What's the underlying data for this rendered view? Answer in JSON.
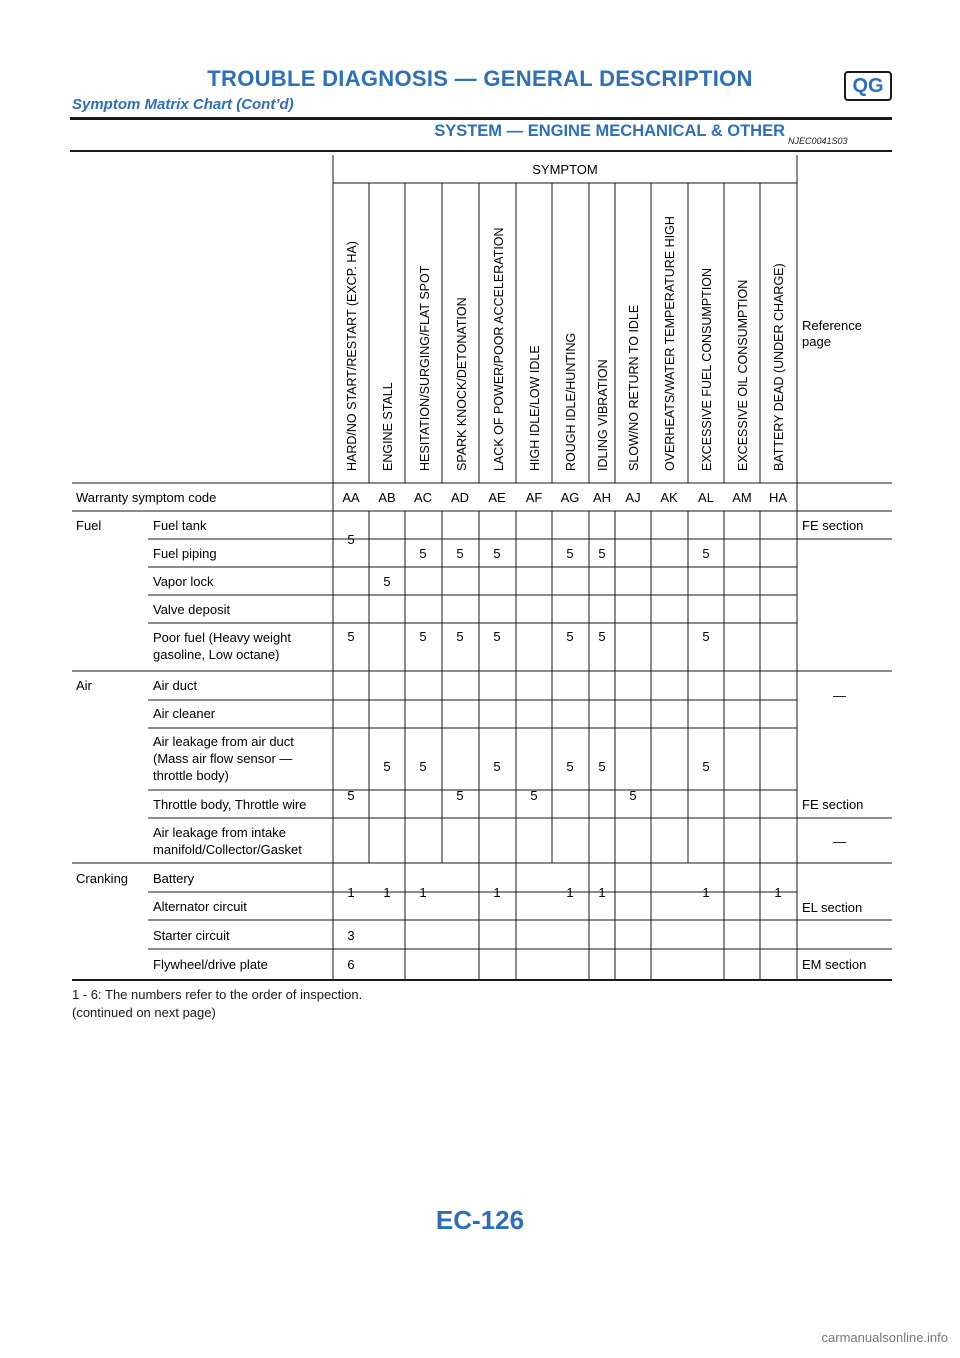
{
  "header": {
    "title": "TROUBLE DIAGNOSIS — GENERAL DESCRIPTION",
    "badge": "QG",
    "subtitle": "Symptom Matrix Chart (Cont’d)"
  },
  "section": {
    "title": "SYSTEM — ENGINE MECHANICAL & OTHER",
    "code": "NJEC0041S03"
  },
  "table": {
    "symptom_header": "SYMPTOM",
    "reference_header": [
      "Reference",
      "page"
    ],
    "symptoms": [
      "HARD/NO START/RESTART (EXCP. HA)",
      "ENGINE STALL",
      "HESITATION/SURGING/FLAT SPOT",
      "SPARK KNOCK/DETONATION",
      "LACK OF POWER/POOR ACCELERATION",
      "HIGH IDLE/LOW IDLE",
      "ROUGH IDLE/HUNTING",
      "IDLING VIBRATION",
      "SLOW/NO RETURN TO IDLE",
      "OVERHEATS/WATER TEMPERATURE HIGH",
      "EXCESSIVE FUEL CONSUMPTION",
      "EXCESSIVE OIL CONSUMPTION",
      "BATTERY DEAD (UNDER CHARGE)"
    ],
    "warranty_label": "Warranty symptom code",
    "codes": [
      "AA",
      "AB",
      "AC",
      "AD",
      "AE",
      "AF",
      "AG",
      "AH",
      "AJ",
      "AK",
      "AL",
      "AM",
      "HA"
    ],
    "groups": [
      "Fuel",
      "Air",
      "Cranking"
    ],
    "items": [
      [
        "Fuel tank"
      ],
      [
        "Fuel piping"
      ],
      [
        "Vapor lock"
      ],
      [
        "Valve deposit"
      ],
      [
        "Poor fuel (Heavy weight",
        "gasoline, Low octane)"
      ],
      [
        "Air duct"
      ],
      [
        "Air cleaner"
      ],
      [
        "Air leakage from air duct",
        "(Mass air flow sensor —",
        "throttle body)"
      ],
      [
        "Throttle body, Throttle wire"
      ],
      [
        "Air leakage from intake",
        "manifold/Collector/Gasket"
      ],
      [
        "Battery"
      ],
      [
        "Alternator circuit"
      ],
      [
        "Starter circuit"
      ],
      [
        "Flywheel/drive plate"
      ]
    ],
    "references": [
      "FE section",
      "—",
      "FE section",
      "—",
      "EL section",
      "EM section"
    ],
    "values": {
      "fuel_tank_hard": "5",
      "fuel_stall": "5",
      "fuel_piping": [
        "5",
        "5",
        "5",
        "5",
        "5",
        "5"
      ],
      "vapor_hard": "5",
      "vapor_row": [
        "5",
        "5",
        "5",
        "5",
        "5",
        "5"
      ],
      "air_row": [
        "5",
        "5",
        "5",
        "5",
        "5",
        "5",
        "5",
        "5",
        "5",
        "5",
        "5"
      ],
      "crank_row": [
        "1",
        "1",
        "1",
        "1",
        "1",
        "1",
        "1",
        "1"
      ],
      "starter": "3",
      "flywheel": "6"
    }
  },
  "footnotes": [
    "1 - 6: The numbers refer to the order of inspection.",
    "(continued on next page)"
  ],
  "page_number": "EC-126",
  "watermark": "carmanualsonline.info"
}
